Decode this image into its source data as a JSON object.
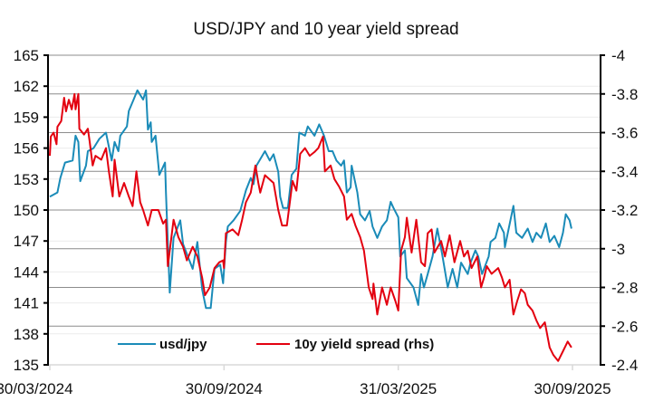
{
  "chart_data": {
    "type": "line",
    "title": "USD/JPY and 10 year yield spread",
    "x_ticks": [
      {
        "day": 0,
        "label": "30/03/2024"
      },
      {
        "day": 183,
        "label": "30/09/2024"
      },
      {
        "day": 366,
        "label": "31/03/2025"
      },
      {
        "day": 549,
        "label": "30/09/2025"
      }
    ],
    "xlim": [
      -2,
      550
    ],
    "left_axis": {
      "ylim": [
        135,
        165
      ],
      "ticks": [
        "135",
        "138",
        "141",
        "144",
        "147",
        "150",
        "153",
        "156",
        "159",
        "162",
        "165"
      ]
    },
    "right_axis": {
      "ylim": [
        -2.4,
        -4.0
      ],
      "ticks": [
        "-2.4",
        "-2.6",
        "-2.8",
        "-3",
        "-3.2",
        "-3.4",
        "-3.6",
        "-3.8",
        "-4"
      ]
    },
    "legend_position": "bottom-left",
    "series": [
      {
        "name": "usd/jpy",
        "axis": "left",
        "color": "#1a8bb8",
        "points": [
          [
            0,
            151.3
          ],
          [
            8,
            151.7
          ],
          [
            11,
            153.1
          ],
          [
            16,
            154.6
          ],
          [
            24,
            154.8
          ],
          [
            27,
            157.2
          ],
          [
            30,
            156.6
          ],
          [
            32,
            152.8
          ],
          [
            38,
            154.3
          ],
          [
            40,
            155.7
          ],
          [
            46,
            156.0
          ],
          [
            52,
            156.9
          ],
          [
            59,
            157.5
          ],
          [
            65,
            154.8
          ],
          [
            68,
            156.6
          ],
          [
            72,
            155.7
          ],
          [
            74,
            157.2
          ],
          [
            81,
            158.1
          ],
          [
            83,
            159.6
          ],
          [
            88,
            160.7
          ],
          [
            92,
            161.6
          ],
          [
            98,
            160.7
          ],
          [
            101,
            161.6
          ],
          [
            103,
            157.8
          ],
          [
            106,
            158.5
          ],
          [
            107,
            156.6
          ],
          [
            111,
            157.2
          ],
          [
            115,
            153.4
          ],
          [
            121,
            154.6
          ],
          [
            122,
            151.7
          ],
          [
            126,
            142.0
          ],
          [
            130,
            147.3
          ],
          [
            137,
            149.0
          ],
          [
            140,
            146.7
          ],
          [
            145,
            145.5
          ],
          [
            150,
            144.3
          ],
          [
            155,
            146.9
          ],
          [
            160,
            142.3
          ],
          [
            164,
            140.5
          ],
          [
            169,
            140.5
          ],
          [
            173,
            144.3
          ],
          [
            179,
            144.7
          ],
          [
            182,
            142.9
          ],
          [
            185,
            146.9
          ],
          [
            187,
            148.4
          ],
          [
            193,
            149.0
          ],
          [
            200,
            149.9
          ],
          [
            206,
            151.9
          ],
          [
            211,
            153.1
          ],
          [
            214,
            152.5
          ],
          [
            217,
            154.3
          ],
          [
            226,
            155.7
          ],
          [
            231,
            154.8
          ],
          [
            235,
            155.4
          ],
          [
            240,
            153.7
          ],
          [
            242,
            151.3
          ],
          [
            245,
            150.2
          ],
          [
            250,
            150.2
          ],
          [
            254,
            153.4
          ],
          [
            259,
            154.0
          ],
          [
            262,
            157.5
          ],
          [
            268,
            157.2
          ],
          [
            271,
            158.1
          ],
          [
            278,
            157.2
          ],
          [
            283,
            158.3
          ],
          [
            288,
            157.2
          ],
          [
            293,
            155.7
          ],
          [
            297,
            155.7
          ],
          [
            301,
            154.8
          ],
          [
            306,
            154.3
          ],
          [
            309,
            154.8
          ],
          [
            312,
            151.7
          ],
          [
            316,
            152.2
          ],
          [
            317,
            154.3
          ],
          [
            323,
            151.7
          ],
          [
            326,
            149.6
          ],
          [
            331,
            149.0
          ],
          [
            336,
            149.9
          ],
          [
            339,
            148.4
          ],
          [
            344,
            147.3
          ],
          [
            349,
            148.4
          ],
          [
            354,
            149.0
          ],
          [
            358,
            150.8
          ],
          [
            361,
            150.2
          ],
          [
            366,
            149.3
          ],
          [
            368,
            145.5
          ],
          [
            373,
            146.1
          ],
          [
            375,
            143.4
          ],
          [
            382,
            142.5
          ],
          [
            387,
            140.8
          ],
          [
            390,
            143.8
          ],
          [
            393,
            142.5
          ],
          [
            397,
            143.8
          ],
          [
            402,
            145.5
          ],
          [
            407,
            148.2
          ],
          [
            412,
            145.8
          ],
          [
            418,
            142.5
          ],
          [
            423,
            144.3
          ],
          [
            428,
            142.5
          ],
          [
            432,
            144.9
          ],
          [
            439,
            143.8
          ],
          [
            442,
            144.9
          ],
          [
            447,
            146.1
          ],
          [
            450,
            145.5
          ],
          [
            454,
            143.8
          ],
          [
            461,
            145.5
          ],
          [
            463,
            146.9
          ],
          [
            468,
            147.3
          ],
          [
            472,
            148.7
          ],
          [
            477,
            147.8
          ],
          [
            478,
            146.4
          ],
          [
            482,
            148.2
          ],
          [
            487,
            150.4
          ],
          [
            490,
            147.8
          ],
          [
            496,
            147.3
          ],
          [
            502,
            148.2
          ],
          [
            507,
            146.9
          ],
          [
            511,
            147.8
          ],
          [
            516,
            147.3
          ],
          [
            521,
            148.7
          ],
          [
            525,
            146.9
          ],
          [
            530,
            147.5
          ],
          [
            535,
            146.4
          ],
          [
            539,
            147.8
          ],
          [
            542,
            149.6
          ],
          [
            546,
            149.0
          ],
          [
            548,
            148.2
          ]
        ]
      },
      {
        "name": "10y yield spread (rhs)",
        "axis": "right",
        "color": "#e3000f",
        "points": [
          [
            0,
            -3.48
          ],
          [
            1,
            -3.58
          ],
          [
            4,
            -3.6
          ],
          [
            7,
            -3.54
          ],
          [
            8,
            -3.63
          ],
          [
            12,
            -3.66
          ],
          [
            15,
            -3.78
          ],
          [
            17,
            -3.71
          ],
          [
            20,
            -3.77
          ],
          [
            23,
            -3.72
          ],
          [
            26,
            -3.8
          ],
          [
            27,
            -3.72
          ],
          [
            30,
            -3.8
          ],
          [
            31,
            -3.62
          ],
          [
            36,
            -3.59
          ],
          [
            40,
            -3.62
          ],
          [
            42,
            -3.55
          ],
          [
            45,
            -3.43
          ],
          [
            48,
            -3.48
          ],
          [
            54,
            -3.46
          ],
          [
            59,
            -3.52
          ],
          [
            62,
            -3.4
          ],
          [
            66,
            -3.27
          ],
          [
            68,
            -3.46
          ],
          [
            73,
            -3.27
          ],
          [
            78,
            -3.34
          ],
          [
            83,
            -3.27
          ],
          [
            87,
            -3.22
          ],
          [
            91,
            -3.4
          ],
          [
            95,
            -3.24
          ],
          [
            98,
            -3.2
          ],
          [
            103,
            -3.12
          ],
          [
            107,
            -3.2
          ],
          [
            114,
            -3.2
          ],
          [
            119,
            -3.13
          ],
          [
            122,
            -3.15
          ],
          [
            124,
            -2.91
          ],
          [
            126,
            -2.99
          ],
          [
            130,
            -3.15
          ],
          [
            135,
            -3.06
          ],
          [
            140,
            -3.01
          ],
          [
            144,
            -2.94
          ],
          [
            150,
            -3.01
          ],
          [
            155,
            -2.96
          ],
          [
            160,
            -2.85
          ],
          [
            163,
            -2.76
          ],
          [
            168,
            -2.8
          ],
          [
            173,
            -2.9
          ],
          [
            178,
            -2.93
          ],
          [
            182,
            -2.94
          ],
          [
            183,
            -2.9
          ],
          [
            185,
            -3.08
          ],
          [
            192,
            -3.1
          ],
          [
            198,
            -3.07
          ],
          [
            202,
            -3.15
          ],
          [
            206,
            -3.24
          ],
          [
            211,
            -3.29
          ],
          [
            216,
            -3.43
          ],
          [
            219,
            -3.34
          ],
          [
            221,
            -3.29
          ],
          [
            226,
            -3.38
          ],
          [
            235,
            -3.34
          ],
          [
            240,
            -3.2
          ],
          [
            244,
            -3.12
          ],
          [
            249,
            -3.12
          ],
          [
            255,
            -3.35
          ],
          [
            259,
            -3.3
          ],
          [
            263,
            -3.49
          ],
          [
            268,
            -3.52
          ],
          [
            273,
            -3.48
          ],
          [
            278,
            -3.5
          ],
          [
            282,
            -3.52
          ],
          [
            287,
            -3.58
          ],
          [
            289,
            -3.4
          ],
          [
            295,
            -3.43
          ],
          [
            299,
            -3.36
          ],
          [
            304,
            -3.32
          ],
          [
            309,
            -3.27
          ],
          [
            312,
            -3.15
          ],
          [
            317,
            -3.18
          ],
          [
            321,
            -3.12
          ],
          [
            326,
            -3.06
          ],
          [
            330,
            -2.99
          ],
          [
            335,
            -2.8
          ],
          [
            339,
            -2.74
          ],
          [
            340,
            -2.82
          ],
          [
            344,
            -2.66
          ],
          [
            349,
            -2.8
          ],
          [
            354,
            -2.71
          ],
          [
            358,
            -2.8
          ],
          [
            363,
            -2.73
          ],
          [
            366,
            -2.68
          ],
          [
            369,
            -2.99
          ],
          [
            373,
            -3.06
          ],
          [
            375,
            -3.16
          ],
          [
            380,
            -2.98
          ],
          [
            385,
            -3.15
          ],
          [
            390,
            -2.93
          ],
          [
            394,
            -2.91
          ],
          [
            397,
            -3.08
          ],
          [
            401,
            -3.1
          ],
          [
            404,
            -2.98
          ],
          [
            411,
            -3.04
          ],
          [
            415,
            -2.96
          ],
          [
            420,
            -3.07
          ],
          [
            425,
            -2.93
          ],
          [
            431,
            -3.04
          ],
          [
            435,
            -2.96
          ],
          [
            439,
            -2.99
          ],
          [
            443,
            -2.9
          ],
          [
            449,
            -2.96
          ],
          [
            453,
            -2.8
          ],
          [
            456,
            -2.85
          ],
          [
            459,
            -2.91
          ],
          [
            464,
            -2.87
          ],
          [
            471,
            -2.9
          ],
          [
            475,
            -2.85
          ],
          [
            478,
            -2.8
          ],
          [
            483,
            -2.84
          ],
          [
            487,
            -2.66
          ],
          [
            491,
            -2.73
          ],
          [
            495,
            -2.79
          ],
          [
            499,
            -2.77
          ],
          [
            502,
            -2.71
          ],
          [
            507,
            -2.68
          ],
          [
            511,
            -2.63
          ],
          [
            515,
            -2.59
          ],
          [
            520,
            -2.62
          ],
          [
            525,
            -2.49
          ],
          [
            529,
            -2.45
          ],
          [
            534,
            -2.42
          ],
          [
            539,
            -2.47
          ],
          [
            544,
            -2.52
          ],
          [
            548,
            -2.49
          ]
        ]
      }
    ]
  }
}
